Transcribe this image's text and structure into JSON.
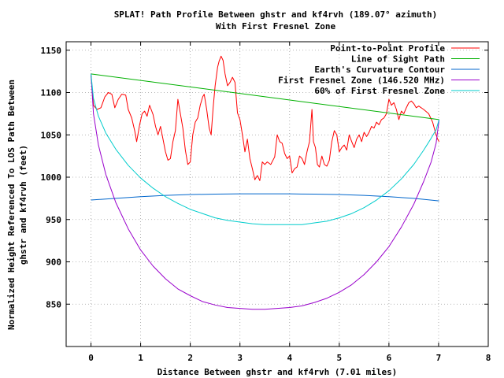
{
  "chart_data": {
    "type": "line",
    "title": "SPLAT! Path Profile Between ghstr and kf4rvh (189.07° azimuth)",
    "subtitle": "With First Fresnel Zone",
    "xlabel": "Distance Between ghstr and kf4rvh (7.01 miles)",
    "ylabel_line1": "Normalized Height Referenced To LOS Path Between",
    "ylabel_line2": "ghstr and kf4rvh (feet)",
    "xlim": [
      -0.5,
      8
    ],
    "ylim": [
      800,
      1160
    ],
    "xticks": [
      0,
      1,
      2,
      3,
      4,
      5,
      6,
      7,
      8
    ],
    "yticks": [
      850,
      900,
      950,
      1000,
      1050,
      1100,
      1150
    ],
    "grid": true,
    "legend_position": "top-right",
    "series": [
      {
        "name": "Point-to-Point Profile",
        "color": "#ff0000",
        "points": [
          [
            0.0,
            1120
          ],
          [
            0.05,
            1085
          ],
          [
            0.12,
            1080
          ],
          [
            0.2,
            1082
          ],
          [
            0.28,
            1095
          ],
          [
            0.35,
            1100
          ],
          [
            0.42,
            1098
          ],
          [
            0.48,
            1082
          ],
          [
            0.55,
            1092
          ],
          [
            0.62,
            1098
          ],
          [
            0.7,
            1097
          ],
          [
            0.75,
            1080
          ],
          [
            0.82,
            1070
          ],
          [
            0.88,
            1055
          ],
          [
            0.92,
            1042
          ],
          [
            0.98,
            1062
          ],
          [
            1.03,
            1075
          ],
          [
            1.08,
            1078
          ],
          [
            1.13,
            1072
          ],
          [
            1.18,
            1085
          ],
          [
            1.25,
            1074
          ],
          [
            1.3,
            1060
          ],
          [
            1.35,
            1050
          ],
          [
            1.4,
            1060
          ],
          [
            1.45,
            1045
          ],
          [
            1.5,
            1030
          ],
          [
            1.55,
            1020
          ],
          [
            1.6,
            1022
          ],
          [
            1.65,
            1042
          ],
          [
            1.7,
            1055
          ],
          [
            1.75,
            1092
          ],
          [
            1.8,
            1075
          ],
          [
            1.85,
            1058
          ],
          [
            1.9,
            1032
          ],
          [
            1.95,
            1015
          ],
          [
            2.0,
            1018
          ],
          [
            2.05,
            1050
          ],
          [
            2.1,
            1065
          ],
          [
            2.15,
            1070
          ],
          [
            2.2,
            1085
          ],
          [
            2.25,
            1095
          ],
          [
            2.28,
            1098
          ],
          [
            2.33,
            1080
          ],
          [
            2.38,
            1058
          ],
          [
            2.42,
            1050
          ],
          [
            2.46,
            1082
          ],
          [
            2.5,
            1108
          ],
          [
            2.55,
            1130
          ],
          [
            2.58,
            1137
          ],
          [
            2.62,
            1143
          ],
          [
            2.66,
            1138
          ],
          [
            2.7,
            1122
          ],
          [
            2.75,
            1108
          ],
          [
            2.8,
            1112
          ],
          [
            2.85,
            1118
          ],
          [
            2.9,
            1112
          ],
          [
            2.95,
            1076
          ],
          [
            3.0,
            1068
          ],
          [
            3.05,
            1050
          ],
          [
            3.1,
            1030
          ],
          [
            3.15,
            1045
          ],
          [
            3.2,
            1022
          ],
          [
            3.25,
            1010
          ],
          [
            3.3,
            997
          ],
          [
            3.35,
            1002
          ],
          [
            3.4,
            996
          ],
          [
            3.45,
            1018
          ],
          [
            3.5,
            1015
          ],
          [
            3.55,
            1018
          ],
          [
            3.62,
            1015
          ],
          [
            3.7,
            1024
          ],
          [
            3.75,
            1050
          ],
          [
            3.8,
            1042
          ],
          [
            3.85,
            1040
          ],
          [
            3.9,
            1028
          ],
          [
            3.95,
            1022
          ],
          [
            4.0,
            1025
          ],
          [
            4.05,
            1005
          ],
          [
            4.1,
            1010
          ],
          [
            4.15,
            1012
          ],
          [
            4.2,
            1025
          ],
          [
            4.25,
            1022
          ],
          [
            4.3,
            1015
          ],
          [
            4.35,
            1030
          ],
          [
            4.4,
            1042
          ],
          [
            4.45,
            1080
          ],
          [
            4.48,
            1042
          ],
          [
            4.52,
            1035
          ],
          [
            4.56,
            1015
          ],
          [
            4.6,
            1012
          ],
          [
            4.65,
            1025
          ],
          [
            4.7,
            1015
          ],
          [
            4.75,
            1013
          ],
          [
            4.8,
            1020
          ],
          [
            4.85,
            1042
          ],
          [
            4.9,
            1055
          ],
          [
            4.95,
            1050
          ],
          [
            5.0,
            1030
          ],
          [
            5.05,
            1035
          ],
          [
            5.1,
            1038
          ],
          [
            5.15,
            1032
          ],
          [
            5.2,
            1050
          ],
          [
            5.25,
            1042
          ],
          [
            5.3,
            1035
          ],
          [
            5.35,
            1045
          ],
          [
            5.4,
            1050
          ],
          [
            5.45,
            1042
          ],
          [
            5.5,
            1053
          ],
          [
            5.55,
            1048
          ],
          [
            5.6,
            1053
          ],
          [
            5.65,
            1060
          ],
          [
            5.7,
            1058
          ],
          [
            5.75,
            1065
          ],
          [
            5.8,
            1062
          ],
          [
            5.85,
            1068
          ],
          [
            5.9,
            1070
          ],
          [
            5.95,
            1075
          ],
          [
            6.0,
            1092
          ],
          [
            6.05,
            1085
          ],
          [
            6.1,
            1088
          ],
          [
            6.15,
            1080
          ],
          [
            6.2,
            1068
          ],
          [
            6.25,
            1078
          ],
          [
            6.3,
            1075
          ],
          [
            6.35,
            1082
          ],
          [
            6.4,
            1088
          ],
          [
            6.45,
            1090
          ],
          [
            6.5,
            1087
          ],
          [
            6.55,
            1082
          ],
          [
            6.6,
            1084
          ],
          [
            6.7,
            1080
          ],
          [
            6.8,
            1075
          ],
          [
            6.88,
            1065
          ],
          [
            6.94,
            1052
          ],
          [
            6.98,
            1045
          ],
          [
            7.01,
            1042
          ]
        ]
      },
      {
        "name": "Line of Sight Path",
        "color": "#00b000",
        "points": [
          [
            0.0,
            1122
          ],
          [
            7.01,
            1068
          ]
        ]
      },
      {
        "name": "Earth's Curvature Contour",
        "color": "#0066cc",
        "points": [
          [
            0.0,
            973
          ],
          [
            0.5,
            975
          ],
          [
            1.0,
            977
          ],
          [
            1.5,
            978.5
          ],
          [
            2.0,
            979.5
          ],
          [
            2.5,
            980
          ],
          [
            3.0,
            980.3
          ],
          [
            3.5,
            980.4
          ],
          [
            4.0,
            980.3
          ],
          [
            4.5,
            980
          ],
          [
            5.0,
            979.5
          ],
          [
            5.5,
            978.5
          ],
          [
            6.0,
            977
          ],
          [
            6.5,
            975
          ],
          [
            7.01,
            972
          ]
        ]
      },
      {
        "name": "First Fresnel Zone (146.520 MHz)",
        "color": "#9900cc",
        "points": [
          [
            0.0,
            1122
          ],
          [
            0.05,
            1075
          ],
          [
            0.15,
            1038
          ],
          [
            0.3,
            1003
          ],
          [
            0.5,
            970
          ],
          [
            0.75,
            939
          ],
          [
            1.0,
            914
          ],
          [
            1.25,
            895
          ],
          [
            1.5,
            880
          ],
          [
            1.75,
            868
          ],
          [
            2.0,
            860
          ],
          [
            2.25,
            853
          ],
          [
            2.5,
            849
          ],
          [
            2.75,
            846
          ],
          [
            3.0,
            845
          ],
          [
            3.25,
            844
          ],
          [
            3.5,
            844
          ],
          [
            3.75,
            845
          ],
          [
            4.0,
            846
          ],
          [
            4.25,
            848
          ],
          [
            4.5,
            852
          ],
          [
            4.75,
            857
          ],
          [
            5.0,
            864
          ],
          [
            5.25,
            873
          ],
          [
            5.5,
            885
          ],
          [
            5.75,
            900
          ],
          [
            6.0,
            918
          ],
          [
            6.25,
            941
          ],
          [
            6.5,
            968
          ],
          [
            6.7,
            995
          ],
          [
            6.85,
            1018
          ],
          [
            6.95,
            1040
          ],
          [
            7.01,
            1068
          ]
        ]
      },
      {
        "name": "60% of First Fresnel Zone",
        "color": "#00cccc",
        "points": [
          [
            0.0,
            1122
          ],
          [
            0.05,
            1093
          ],
          [
            0.15,
            1072
          ],
          [
            0.3,
            1052
          ],
          [
            0.5,
            1033
          ],
          [
            0.75,
            1014
          ],
          [
            1.0,
            999
          ],
          [
            1.25,
            987
          ],
          [
            1.5,
            977
          ],
          [
            1.75,
            969
          ],
          [
            2.0,
            962
          ],
          [
            2.25,
            957
          ],
          [
            2.5,
            952
          ],
          [
            2.75,
            949
          ],
          [
            3.0,
            947
          ],
          [
            3.25,
            945
          ],
          [
            3.5,
            944
          ],
          [
            3.75,
            944
          ],
          [
            4.0,
            944
          ],
          [
            4.25,
            944
          ],
          [
            4.5,
            946
          ],
          [
            4.75,
            948
          ],
          [
            5.0,
            952
          ],
          [
            5.25,
            957
          ],
          [
            5.5,
            964
          ],
          [
            5.75,
            973
          ],
          [
            6.0,
            984
          ],
          [
            6.25,
            998
          ],
          [
            6.5,
            1015
          ],
          [
            6.7,
            1032
          ],
          [
            6.85,
            1046
          ],
          [
            6.95,
            1056
          ],
          [
            7.01,
            1068
          ]
        ]
      }
    ]
  }
}
